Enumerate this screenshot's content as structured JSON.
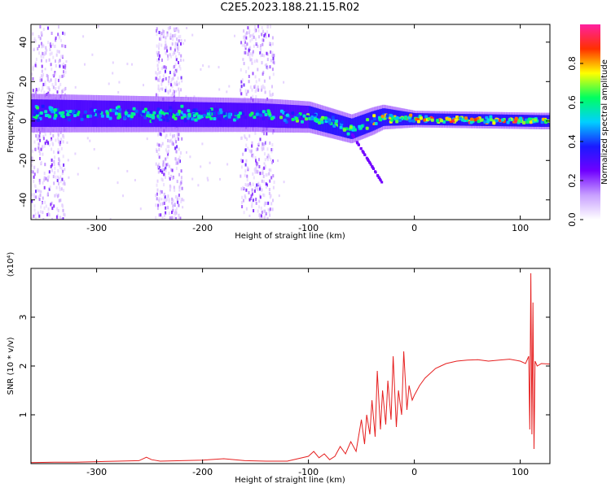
{
  "figure": {
    "title": "C2E5.2023.188.21.15.R02"
  },
  "chart_data": [
    {
      "type": "heatmap",
      "xlabel": "Height of straight line (km)",
      "ylabel": "Frequency (Hz)",
      "xlim": [
        -362,
        128
      ],
      "ylim": [
        -50,
        49
      ],
      "x_ticks": [
        -300,
        -200,
        -100,
        0,
        100
      ],
      "y_ticks": [
        -40,
        -20,
        0,
        20,
        40
      ],
      "colorbar": {
        "label": "Normalized spectral amplitude",
        "range": [
          0,
          1
        ],
        "ticks": [
          "0.0",
          "0.2",
          "0.4",
          "0.6",
          "0.8"
        ],
        "colors": [
          "#ffffff",
          "#c8a0ff",
          "#7000ff",
          "#1a1aff",
          "#00d0ff",
          "#00ff60",
          "#ffff00",
          "#ff3000",
          "#ff20a0"
        ]
      },
      "features": {
        "main_band_center_hz": [
          [
            -362,
            4
          ],
          [
            -150,
            3
          ],
          [
            -100,
            2
          ],
          [
            -60,
            -4
          ],
          [
            -30,
            2
          ],
          [
            0,
            1
          ],
          [
            120,
            0
          ]
        ],
        "main_band_halfwidth_hz": [
          [
            -362,
            7
          ],
          [
            -130,
            6
          ],
          [
            -40,
            5
          ],
          [
            0,
            3
          ],
          [
            128,
            3
          ]
        ],
        "scatter_columns_km": [
          [
            -362,
            -330
          ],
          [
            -245,
            -220
          ],
          [
            -165,
            -133
          ]
        ],
        "branch_end": [
          -30,
          -32
        ]
      }
    },
    {
      "type": "line",
      "xlabel": "Height of straight line (km)",
      "ylabel": "SNR (10 * v/v)",
      "y_multiplier": "(x10⁴)",
      "xlim": [
        -362,
        128
      ],
      "ylim": [
        0,
        4.0
      ],
      "x_ticks": [
        -300,
        -200,
        -100,
        0,
        100
      ],
      "y_ticks": [
        1,
        2,
        3
      ],
      "series": [
        {
          "color": "#e62020",
          "x": [
            -362,
            -340,
            -320,
            -300,
            -280,
            -260,
            -253,
            -248,
            -240,
            -220,
            -200,
            -180,
            -160,
            -140,
            -120,
            -110,
            -100,
            -95,
            -90,
            -85,
            -80,
            -75,
            -70,
            -65,
            -60,
            -55,
            -50,
            -47,
            -45,
            -42,
            -40,
            -37,
            -35,
            -32,
            -30,
            -27,
            -25,
            -22,
            -20,
            -17,
            -15,
            -12,
            -10,
            -7,
            -5,
            -2,
            0,
            5,
            10,
            15,
            20,
            25,
            30,
            40,
            50,
            60,
            70,
            80,
            90,
            100,
            105,
            108,
            109,
            110,
            111,
            112,
            113,
            114,
            116,
            120,
            128
          ],
          "y": [
            0.02,
            0.03,
            0.03,
            0.04,
            0.05,
            0.06,
            0.13,
            0.08,
            0.05,
            0.06,
            0.07,
            0.1,
            0.06,
            0.05,
            0.05,
            0.1,
            0.15,
            0.25,
            0.12,
            0.2,
            0.08,
            0.15,
            0.35,
            0.2,
            0.45,
            0.25,
            0.9,
            0.4,
            1.0,
            0.6,
            1.3,
            0.55,
            1.9,
            0.7,
            1.5,
            0.8,
            1.7,
            0.9,
            2.2,
            0.75,
            1.5,
            1.0,
            2.3,
            1.1,
            1.6,
            1.3,
            1.4,
            1.6,
            1.75,
            1.85,
            1.95,
            2.0,
            2.05,
            2.1,
            2.12,
            2.13,
            2.1,
            2.12,
            2.14,
            2.1,
            2.05,
            2.2,
            0.7,
            3.9,
            0.6,
            3.3,
            0.3,
            2.1,
            2.0,
            2.05,
            2.04
          ]
        }
      ]
    }
  ]
}
